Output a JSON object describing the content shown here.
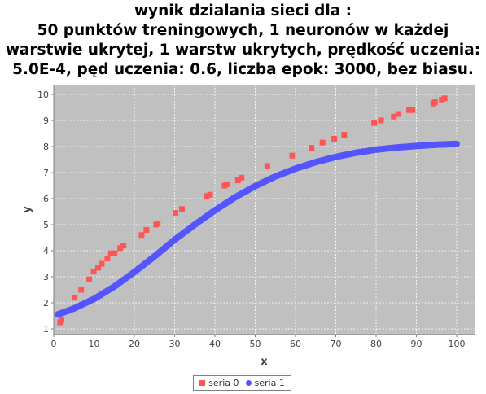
{
  "title_lines": [
    "wynik dzialania sieci dla :",
    "50 punktów treningowych, 1 neuronów w każdej",
    "warstwie ukrytej, 1 warstw ukrytych, prędkość uczenia:",
    "5.0E-4, pęd uczenia: 0.6, liczba epok: 3000, bez biasu."
  ],
  "colors": {
    "plot_background": "#c0c0c0",
    "grid": "#ffffff",
    "series0": "#ff5555",
    "series1": "#5555ff"
  },
  "chart_data": {
    "type": "scatter",
    "xlabel": "x",
    "ylabel": "y",
    "xlim": [
      0,
      100
    ],
    "ylim": [
      1,
      10
    ],
    "x_ticks": [
      "0",
      "10",
      "20",
      "30",
      "40",
      "50",
      "60",
      "70",
      "80",
      "90",
      "100"
    ],
    "y_ticks": [
      "1",
      "2",
      "3",
      "4",
      "5",
      "6",
      "7",
      "8",
      "9",
      "10"
    ],
    "grid": true,
    "legend_position": "bottom",
    "series": [
      {
        "name": "seria 0",
        "marker": "square",
        "points": [
          [
            1.6,
            1.25
          ],
          [
            1.9,
            1.35
          ],
          [
            5.2,
            2.2
          ],
          [
            6.8,
            2.5
          ],
          [
            8.8,
            2.9
          ],
          [
            9.9,
            3.2
          ],
          [
            11.0,
            3.35
          ],
          [
            11.9,
            3.5
          ],
          [
            13.3,
            3.7
          ],
          [
            14.2,
            3.9
          ],
          [
            15.1,
            3.9
          ],
          [
            16.5,
            4.1
          ],
          [
            17.3,
            4.2
          ],
          [
            21.8,
            4.6
          ],
          [
            23.0,
            4.8
          ],
          [
            25.4,
            5.0
          ],
          [
            25.8,
            5.05
          ],
          [
            30.2,
            5.45
          ],
          [
            31.8,
            5.6
          ],
          [
            38.0,
            6.1
          ],
          [
            38.8,
            6.15
          ],
          [
            42.4,
            6.5
          ],
          [
            43.0,
            6.55
          ],
          [
            45.7,
            6.7
          ],
          [
            46.6,
            6.8
          ],
          [
            53.0,
            7.25
          ],
          [
            59.2,
            7.65
          ],
          [
            64.0,
            7.95
          ],
          [
            66.7,
            8.15
          ],
          [
            69.6,
            8.3
          ],
          [
            72.1,
            8.45
          ],
          [
            79.5,
            8.9
          ],
          [
            81.2,
            9.0
          ],
          [
            84.4,
            9.15
          ],
          [
            85.5,
            9.25
          ],
          [
            88.2,
            9.4
          ],
          [
            89.0,
            9.4
          ],
          [
            94.2,
            9.65
          ],
          [
            94.6,
            9.7
          ],
          [
            96.3,
            9.8
          ],
          [
            97.0,
            9.85
          ]
        ]
      },
      {
        "name": "seria 1",
        "marker": "circle",
        "points": [
          [
            1,
            1.55
          ],
          [
            5,
            1.78
          ],
          [
            10,
            2.15
          ],
          [
            15,
            2.62
          ],
          [
            20,
            3.18
          ],
          [
            25,
            3.78
          ],
          [
            30,
            4.42
          ],
          [
            35,
            5.0
          ],
          [
            40,
            5.55
          ],
          [
            45,
            6.05
          ],
          [
            50,
            6.48
          ],
          [
            55,
            6.85
          ],
          [
            60,
            7.15
          ],
          [
            65,
            7.4
          ],
          [
            70,
            7.6
          ],
          [
            75,
            7.76
          ],
          [
            80,
            7.88
          ],
          [
            85,
            7.96
          ],
          [
            90,
            8.02
          ],
          [
            95,
            8.07
          ],
          [
            100,
            8.1
          ]
        ]
      }
    ]
  }
}
